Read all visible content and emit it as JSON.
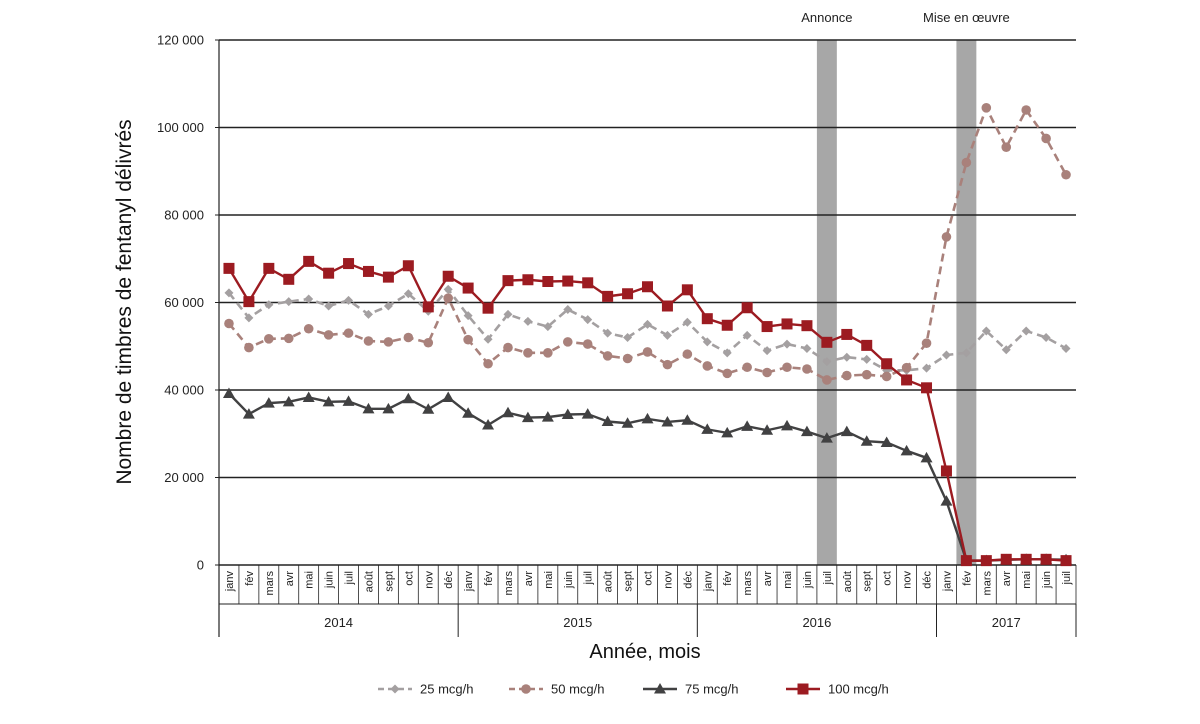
{
  "chart_data": {
    "type": "line",
    "ylabel": "Nombre de timbres de fentanyl délivrés",
    "xlabel": "Année, mois",
    "ylim": [
      0,
      120000
    ],
    "yticks": [
      0,
      20000,
      40000,
      60000,
      80000,
      100000,
      120000
    ],
    "ytick_labels": [
      "0",
      "20 000",
      "40 000",
      "60 000",
      "80 000",
      "100 000",
      "120 000"
    ],
    "grid": "horizontal",
    "legend_position": "bottom",
    "months": [
      "janv",
      "fév",
      "mars",
      "avr",
      "mai",
      "juin",
      "juil",
      "août",
      "sept",
      "oct",
      "nov",
      "déc",
      "janv",
      "fév",
      "mars",
      "avr",
      "mai",
      "juin",
      "juil",
      "août",
      "sept",
      "oct",
      "nov",
      "déc",
      "janv",
      "fév",
      "mars",
      "avr",
      "mai",
      "juin",
      "juil",
      "août",
      "sept",
      "oct",
      "nov",
      "déc",
      "janv",
      "fév",
      "mars",
      "avr",
      "mai",
      "juin",
      "juil"
    ],
    "years": [
      {
        "label": "2014",
        "start": 0,
        "count": 12
      },
      {
        "label": "2015",
        "start": 12,
        "count": 12
      },
      {
        "label": "2016",
        "start": 24,
        "count": 12
      },
      {
        "label": "2017",
        "start": 36,
        "count": 7
      }
    ],
    "annotations": [
      {
        "label": "Annonce",
        "index": 30
      },
      {
        "label": "Mise en œuvre",
        "index": 37
      }
    ],
    "series": [
      {
        "name": "25 mcg/h",
        "color": "#a4a0a1",
        "dash": "dashed",
        "marker": "diamond",
        "values": [
          62200,
          56500,
          59500,
          60200,
          60800,
          59200,
          60500,
          57300,
          59200,
          62000,
          58000,
          63000,
          57000,
          51600,
          57300,
          55700,
          54500,
          58400,
          56100,
          53000,
          52000,
          55000,
          52500,
          55500,
          51000,
          48500,
          52500,
          49000,
          50500,
          49500,
          46500,
          47500,
          47000,
          44500,
          44500,
          45000,
          48000,
          48500,
          53500,
          49200,
          53500,
          52000,
          49500
        ]
      },
      {
        "name": "50 mcg/h",
        "color": "#a9817b",
        "dash": "dashed",
        "marker": "circle",
        "values": [
          55200,
          49700,
          51700,
          51800,
          54000,
          52600,
          53000,
          51200,
          51000,
          52000,
          50800,
          61000,
          51500,
          46000,
          49700,
          48500,
          48500,
          51000,
          50500,
          47800,
          47200,
          48700,
          45800,
          48200,
          45500,
          43800,
          45200,
          44000,
          45200,
          44800,
          42300,
          43300,
          43500,
          43100,
          45100,
          50700,
          75000,
          92000,
          104500,
          95500,
          104000,
          97500,
          89200
        ]
      },
      {
        "name": "75 mcg/h",
        "color": "#414142",
        "dash": "solid",
        "marker": "triangle",
        "values": [
          39200,
          34500,
          37000,
          37300,
          38300,
          37300,
          37400,
          35700,
          35700,
          38000,
          35600,
          38300,
          34700,
          32000,
          34800,
          33700,
          33800,
          34400,
          34500,
          32800,
          32400,
          33400,
          32700,
          33100,
          31000,
          30200,
          31700,
          30800,
          31800,
          30500,
          29000,
          30500,
          28300,
          28000,
          26100,
          24500,
          14600,
          1000,
          1000,
          1200,
          1300,
          1300,
          1200
        ]
      },
      {
        "name": "100 mcg/h",
        "color": "#9c1b21",
        "dash": "solid",
        "marker": "square",
        "values": [
          67800,
          60200,
          67800,
          65300,
          69400,
          66700,
          68900,
          67100,
          65800,
          68400,
          59000,
          66000,
          63300,
          58700,
          65000,
          65200,
          64800,
          64900,
          64500,
          61400,
          62000,
          63600,
          59200,
          62900,
          56300,
          54800,
          58800,
          54500,
          55100,
          54700,
          50900,
          52700,
          50200,
          46000,
          42300,
          40500,
          21500,
          1000,
          1000,
          1300,
          1300,
          1300,
          1000
        ]
      }
    ]
  }
}
